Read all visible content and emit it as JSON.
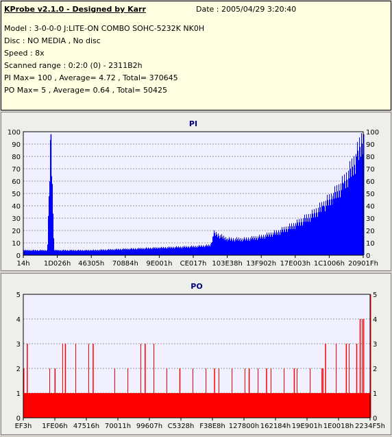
{
  "header": {
    "title": "KProbe v2.1.0 - Designed by Karr",
    "date": "Date : 2005/04/29 3:20:40",
    "model": "Model : 3-0-0-0 J:LITE-ON COMBO SOHC-5232K NK0H",
    "disc": "Disc : NO MEDIA , No disc",
    "speed": "Speed : 8x",
    "scanned_range": "Scanned range : 0:2:0 (0) - 2311B2h",
    "pi_stats": "PI Max= 100 , Average= 4.72 , Total= 370645",
    "po_stats": "PO Max= 5 , Average= 0.64 , Total= 50425"
  },
  "colors": {
    "pi_bar": "#0000ff",
    "po_bar": "#ff0000",
    "plot_bg": "#f0f0ff"
  },
  "chart_data": [
    {
      "type": "area",
      "title": "PI",
      "ylim": [
        0,
        100
      ],
      "yticks": [
        0,
        10,
        20,
        30,
        40,
        50,
        60,
        70,
        80,
        90,
        100
      ],
      "xtick_labels": [
        "14h",
        "1D026h",
        "46305h",
        "70884h",
        "9E001h",
        "CE017h",
        "103E38h",
        "13F902h",
        "17E003h",
        "1C1006h",
        "20901Fh"
      ],
      "x": [
        0.0,
        0.07,
        0.08,
        0.09,
        0.1,
        0.2,
        0.3,
        0.4,
        0.5,
        0.55,
        0.56,
        0.6,
        0.65,
        0.7,
        0.75,
        0.8,
        0.85,
        0.88,
        0.91,
        0.94,
        0.96,
        0.98,
        1.0
      ],
      "values": [
        4,
        4,
        98,
        4,
        4,
        4,
        5,
        6,
        7,
        8,
        18,
        13,
        13,
        15,
        19,
        25,
        33,
        40,
        48,
        58,
        68,
        80,
        98
      ],
      "grid": true
    },
    {
      "type": "area",
      "title": "PO",
      "ylim": [
        0,
        5
      ],
      "yticks": [
        0,
        1,
        2,
        3,
        4,
        5
      ],
      "xtick_labels": [
        "EF3h",
        "1FE06h",
        "47516h",
        "70011h",
        "99607h",
        "C5328h",
        "F38E8h",
        "127800h",
        "162184h",
        "19E901h",
        "1E0018h",
        "2234F5h"
      ],
      "x": [
        0.0,
        0.01,
        0.02,
        0.09,
        0.12,
        0.2,
        0.23,
        0.35,
        0.45,
        0.55,
        0.65,
        0.7,
        0.78,
        0.86,
        0.87,
        0.93,
        0.96,
        0.97,
        0.98,
        1.0
      ],
      "values": [
        2,
        3,
        1,
        2,
        3,
        3,
        1,
        3,
        2,
        2,
        2,
        2,
        2,
        2,
        3,
        3,
        3,
        4,
        4,
        5
      ],
      "baseline": 1,
      "grid": true
    }
  ]
}
